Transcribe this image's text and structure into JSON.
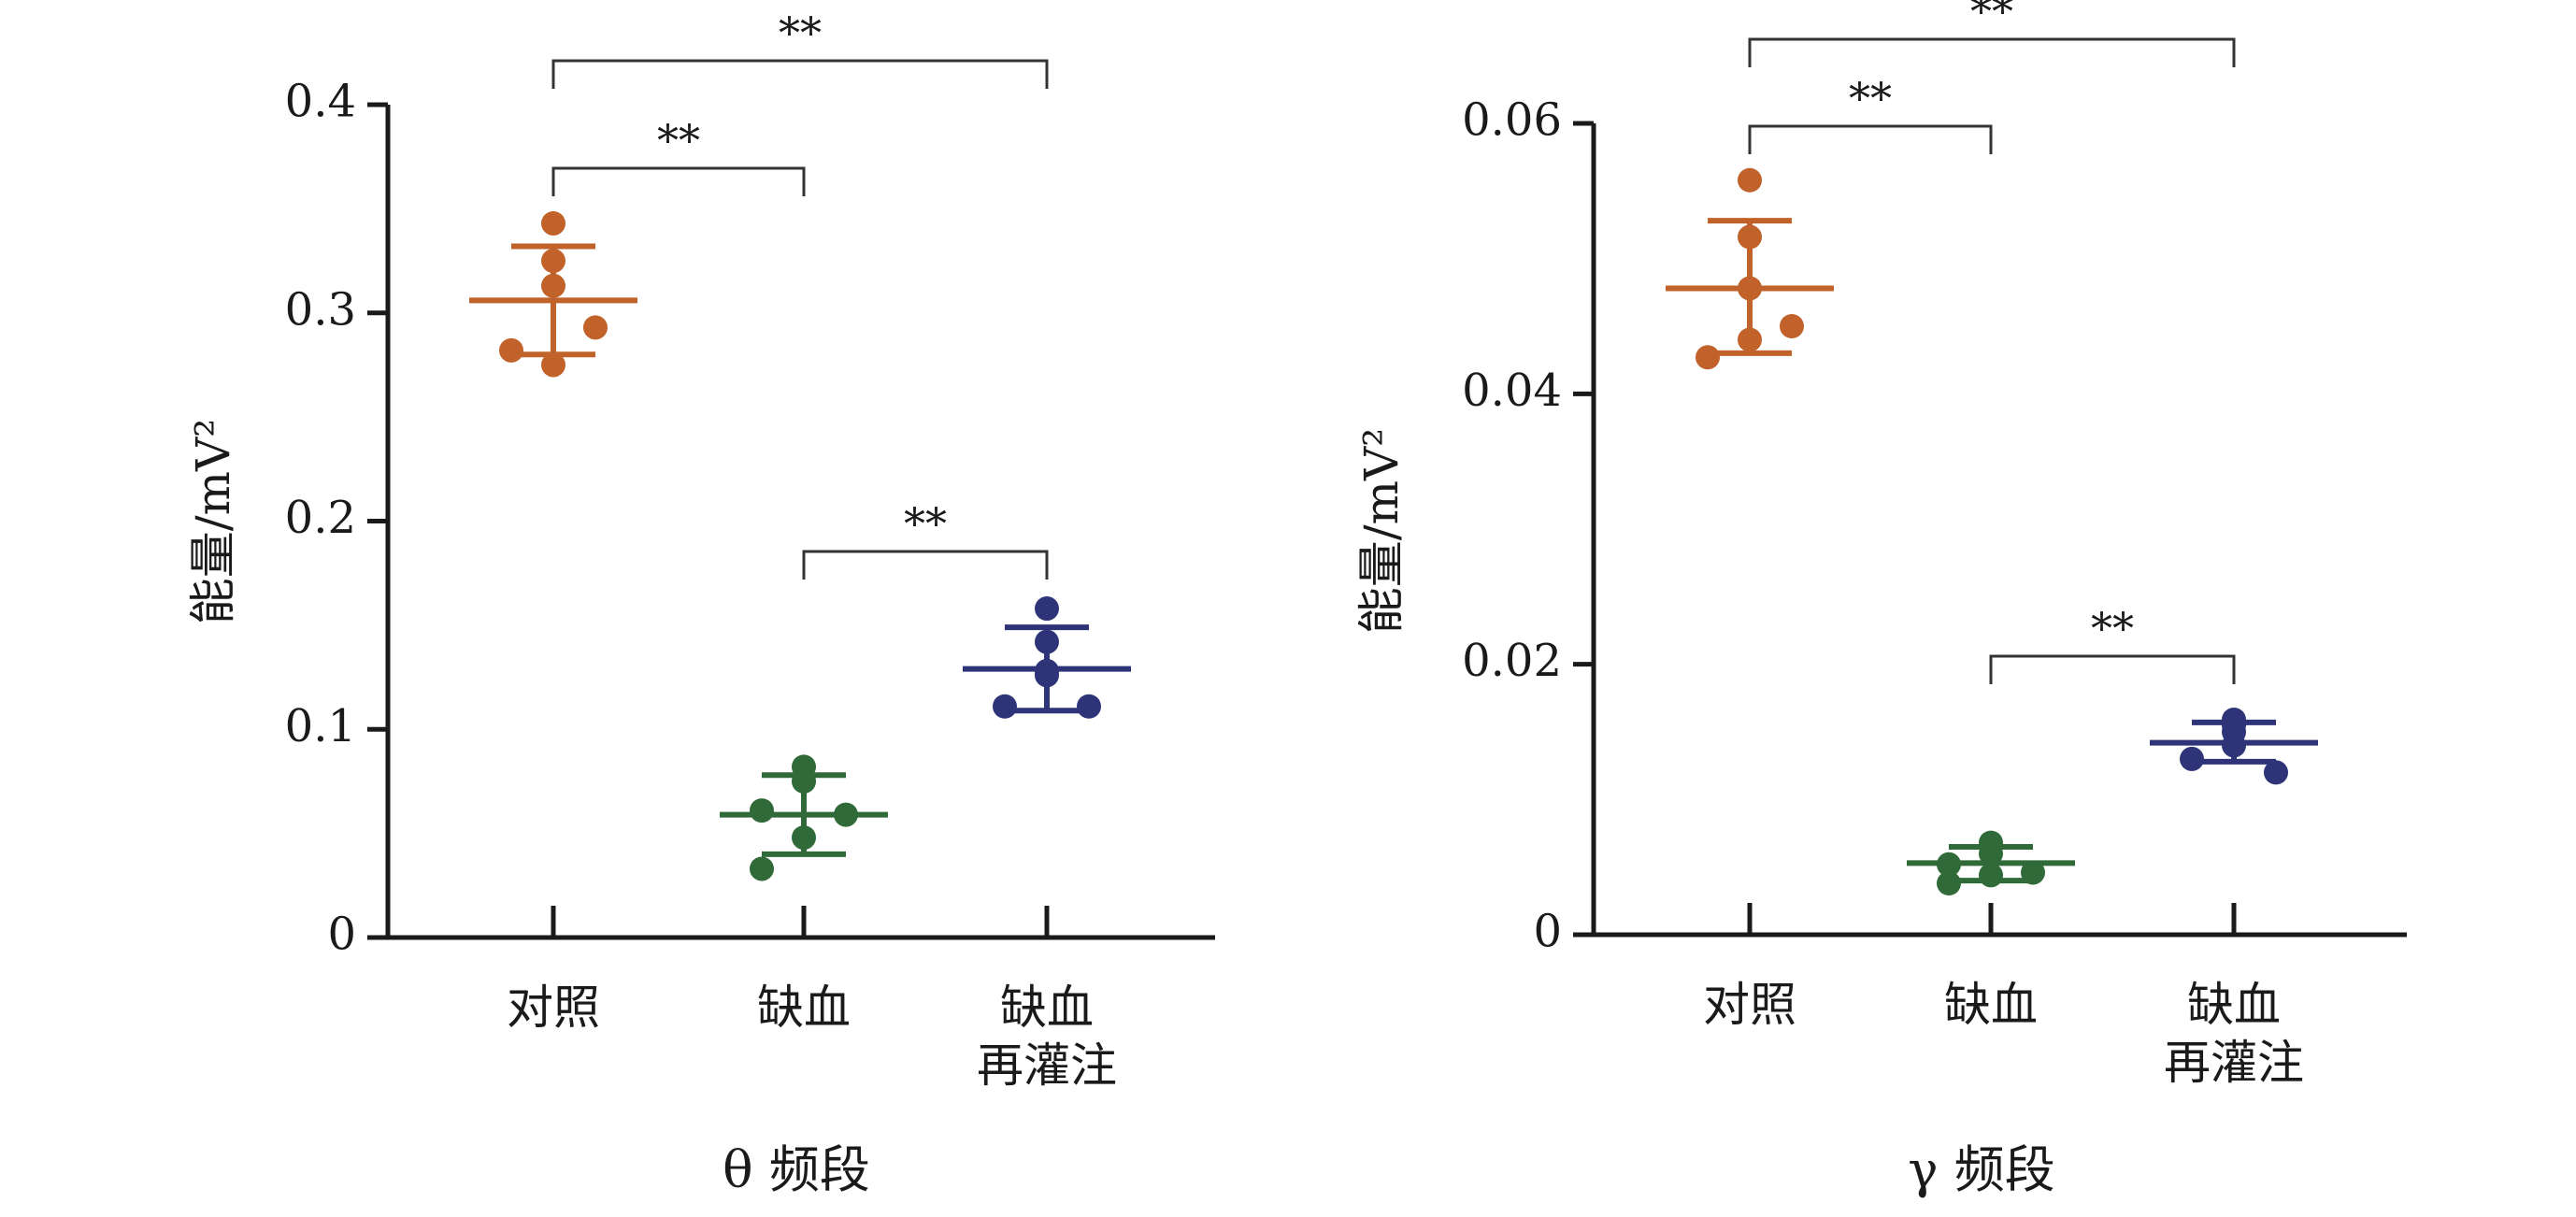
{
  "colors": {
    "control": "#c0622a",
    "ischemia": "#2f6a38",
    "reperfusion": "#2e3477",
    "axis": "#1a1a1a"
  },
  "sig_label": "**",
  "chart_data": [
    {
      "type": "scatter",
      "title": "θ 频段",
      "ylabel": "能量/mV²",
      "ylim": [
        0,
        0.4
      ],
      "yticks": [
        0,
        0.1,
        0.2,
        0.3,
        0.4
      ],
      "ytick_labels": [
        "0",
        "0.1",
        "0.2",
        "0.3",
        "0.4"
      ],
      "categories": [
        {
          "lines": [
            "对照"
          ]
        },
        {
          "lines": [
            "缺血"
          ]
        },
        {
          "lines": [
            "缺血",
            "再灌注"
          ]
        }
      ],
      "series": [
        {
          "mean": 0.306,
          "sd_low": 0.28,
          "sd_high": 0.332,
          "points": [
            0.343,
            0.325,
            0.313,
            0.293,
            0.275,
            0.282
          ]
        },
        {
          "mean": 0.059,
          "sd_low": 0.04,
          "sd_high": 0.078,
          "points": [
            0.082,
            0.075,
            0.061,
            0.059,
            0.048,
            0.033
          ]
        },
        {
          "mean": 0.129,
          "sd_low": 0.109,
          "sd_high": 0.149,
          "points": [
            0.158,
            0.142,
            0.126,
            0.128,
            0.111,
            0.111
          ]
        }
      ],
      "significance": [
        {
          "from": 0,
          "to": 1,
          "label": "**"
        },
        {
          "from": 0,
          "to": 2,
          "label": "**"
        },
        {
          "from": 1,
          "to": 2,
          "label": "**"
        }
      ]
    },
    {
      "type": "scatter",
      "title": "γ 频段",
      "ylabel": "能量/mV²",
      "ylim": [
        0,
        0.06
      ],
      "yticks": [
        0,
        0.02,
        0.04,
        0.06
      ],
      "ytick_labels": [
        "0",
        "0.02",
        "0.04",
        "0.06"
      ],
      "categories": [
        {
          "lines": [
            "对照"
          ]
        },
        {
          "lines": [
            "缺血"
          ]
        },
        {
          "lines": [
            "缺血",
            "再灌注"
          ]
        }
      ],
      "series": [
        {
          "mean": 0.0478,
          "sd_low": 0.043,
          "sd_high": 0.0528,
          "points": [
            0.0558,
            0.0516,
            0.0478,
            0.045,
            0.044,
            0.0427
          ]
        },
        {
          "mean": 0.0053,
          "sd_low": 0.004,
          "sd_high": 0.0065,
          "points": [
            0.0068,
            0.006,
            0.0052,
            0.0046,
            0.0044,
            0.0038
          ]
        },
        {
          "mean": 0.0142,
          "sd_low": 0.0128,
          "sd_high": 0.0157,
          "points": [
            0.0159,
            0.0155,
            0.015,
            0.014,
            0.013,
            0.012
          ]
        }
      ],
      "significance": [
        {
          "from": 0,
          "to": 1,
          "label": "**"
        },
        {
          "from": 0,
          "to": 2,
          "label": "**"
        },
        {
          "from": 1,
          "to": 2,
          "label": "**"
        }
      ]
    }
  ]
}
